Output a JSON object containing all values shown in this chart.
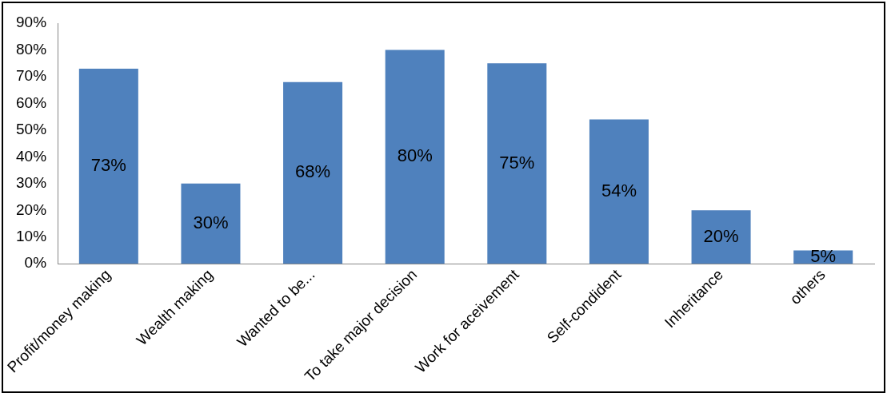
{
  "chart_data": {
    "type": "bar",
    "categories": [
      "Profit/money making",
      "Wealth making",
      "Wanted to be...",
      "To take major decision",
      "Work for aceivement",
      "Self-condident",
      "Inheritance",
      "others"
    ],
    "values": [
      73,
      30,
      68,
      80,
      75,
      54,
      20,
      5
    ],
    "value_labels": [
      "73%",
      "30%",
      "68%",
      "80%",
      "75%",
      "54%",
      "20%",
      "5%"
    ],
    "color": "#4f81bd",
    "ylim": [
      0,
      90
    ],
    "yticks": [
      {
        "value": 0,
        "label": "0%"
      },
      {
        "value": 10,
        "label": "10%"
      },
      {
        "value": 20,
        "label": "20%"
      },
      {
        "value": 30,
        "label": "30%"
      },
      {
        "value": 40,
        "label": "40%"
      },
      {
        "value": 50,
        "label": "50%"
      },
      {
        "value": 60,
        "label": "60%"
      },
      {
        "value": 70,
        "label": "70%"
      },
      {
        "value": 80,
        "label": "80%"
      },
      {
        "value": 90,
        "label": "90%"
      }
    ],
    "grid": false,
    "legend": false
  }
}
